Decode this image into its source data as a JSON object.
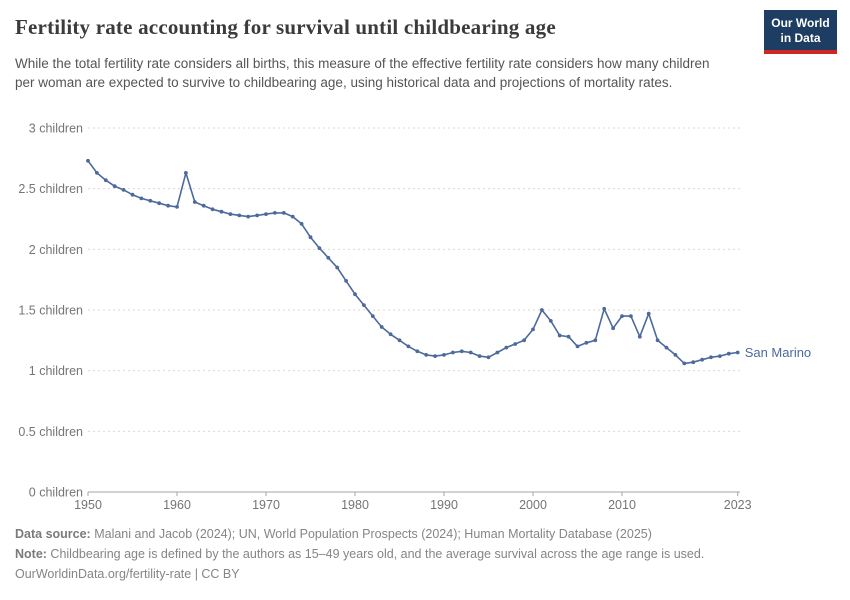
{
  "header": {
    "title": "Fertility rate accounting for survival until childbearing age",
    "subtitle": "While the total fertility rate considers all births, this measure of the effective fertility rate considers how many children per woman are expected to survive to childbearing age, using historical data and projections of mortality rates.",
    "logo": {
      "line1": "Our World",
      "line2": "in Data"
    }
  },
  "chart_data": {
    "type": "line",
    "title": "Fertility rate accounting for survival until childbearing age",
    "xlabel": "",
    "ylabel": "",
    "xlim": [
      1950,
      2023
    ],
    "ylim": [
      0,
      3
    ],
    "grid": "horizontal-dashed",
    "legend": "end-of-line-label",
    "x_ticks": [
      1950,
      1960,
      1970,
      1980,
      1990,
      2000,
      2010,
      2023
    ],
    "y_ticks": [
      0,
      0.5,
      1,
      1.5,
      2,
      2.5,
      3
    ],
    "y_tick_labels": [
      "0 children",
      "0.5 children",
      "1 children",
      "1.5 children",
      "2 children",
      "2.5 children",
      "3 children"
    ],
    "x": [
      1950,
      1951,
      1952,
      1953,
      1954,
      1955,
      1956,
      1957,
      1958,
      1959,
      1960,
      1961,
      1962,
      1963,
      1964,
      1965,
      1966,
      1967,
      1968,
      1969,
      1970,
      1971,
      1972,
      1973,
      1974,
      1975,
      1976,
      1977,
      1978,
      1979,
      1980,
      1981,
      1982,
      1983,
      1984,
      1985,
      1986,
      1987,
      1988,
      1989,
      1990,
      1991,
      1992,
      1993,
      1994,
      1995,
      1996,
      1997,
      1998,
      1999,
      2000,
      2001,
      2002,
      2003,
      2004,
      2005,
      2006,
      2007,
      2008,
      2009,
      2010,
      2011,
      2012,
      2013,
      2014,
      2015,
      2016,
      2017,
      2018,
      2019,
      2020,
      2021,
      2022,
      2023
    ],
    "series": [
      {
        "name": "San Marino",
        "values": [
          2.73,
          2.63,
          2.57,
          2.52,
          2.49,
          2.45,
          2.42,
          2.4,
          2.38,
          2.36,
          2.35,
          2.63,
          2.39,
          2.36,
          2.33,
          2.31,
          2.29,
          2.28,
          2.27,
          2.28,
          2.29,
          2.3,
          2.3,
          2.27,
          2.21,
          2.1,
          2.01,
          1.93,
          1.85,
          1.74,
          1.63,
          1.54,
          1.45,
          1.36,
          1.3,
          1.25,
          1.2,
          1.16,
          1.13,
          1.12,
          1.13,
          1.15,
          1.16,
          1.15,
          1.12,
          1.11,
          1.15,
          1.19,
          1.22,
          1.25,
          1.34,
          1.5,
          1.41,
          1.29,
          1.28,
          1.2,
          1.23,
          1.25,
          1.51,
          1.35,
          1.45,
          1.45,
          1.28,
          1.47,
          1.25,
          1.19,
          1.13,
          1.06,
          1.07,
          1.09,
          1.11,
          1.12,
          1.14,
          1.15
        ]
      }
    ]
  },
  "footer": {
    "data_source_label": "Data source:",
    "data_source_text": " Malani and Jacob (2024); UN, World Population Prospects (2024); Human Mortality Database (2025)",
    "note_label": "Note:",
    "note_text": " Childbearing age is defined by the authors as 15–49 years old, and the average survival across the age range is used.",
    "license_line": "OurWorldinData.org/fertility-rate | CC BY"
  },
  "colors": {
    "line": "#4C6A9C",
    "grid": "#dadada",
    "axis": "#a6a6a6",
    "tick_label": "#757575",
    "logo_bg": "#1d3d63",
    "logo_bar": "#cf2723"
  }
}
